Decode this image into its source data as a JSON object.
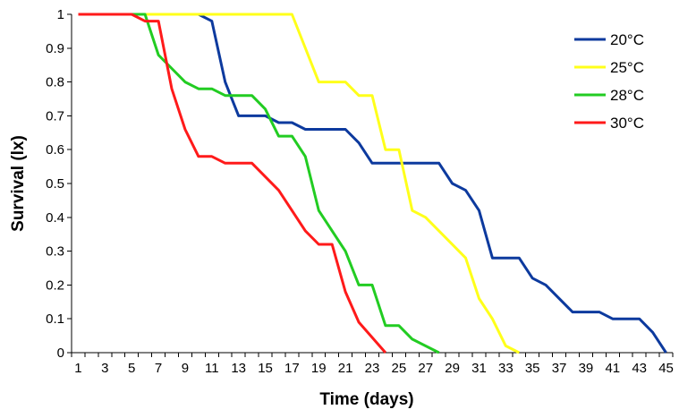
{
  "chart_data": {
    "type": "line",
    "title": "",
    "xlabel": "Time (days)",
    "ylabel": "Survival (lx)",
    "xlim": [
      1,
      45
    ],
    "ylim": [
      0,
      1
    ],
    "grid": false,
    "legend_position": "top-right",
    "x_tick_labels": [
      "1",
      "3",
      "5",
      "7",
      "9",
      "11",
      "13",
      "15",
      "17",
      "19",
      "21",
      "23",
      "25",
      "27",
      "29",
      "31",
      "33",
      "35",
      "37",
      "39",
      "41",
      "43",
      "45"
    ],
    "y_tick_labels": [
      "0",
      "0.1",
      "0.2",
      "0.3",
      "0.4",
      "0.5",
      "0.6",
      "0.7",
      "0.8",
      "0.9",
      "1"
    ],
    "series": [
      {
        "name": "20°C",
        "color": "#0d3a9e",
        "points": [
          [
            1,
            1
          ],
          [
            10,
            1
          ],
          [
            11,
            0.98
          ],
          [
            12,
            0.8
          ],
          [
            13,
            0.7
          ],
          [
            15,
            0.7
          ],
          [
            16,
            0.68
          ],
          [
            17,
            0.68
          ],
          [
            18,
            0.66
          ],
          [
            21,
            0.66
          ],
          [
            22,
            0.62
          ],
          [
            23,
            0.56
          ],
          [
            28,
            0.56
          ],
          [
            29,
            0.5
          ],
          [
            30,
            0.48
          ],
          [
            31,
            0.42
          ],
          [
            32,
            0.28
          ],
          [
            34,
            0.28
          ],
          [
            35,
            0.22
          ],
          [
            36,
            0.2
          ],
          [
            38,
            0.12
          ],
          [
            40,
            0.12
          ],
          [
            41,
            0.1
          ],
          [
            43,
            0.1
          ],
          [
            44,
            0.06
          ],
          [
            45,
            0
          ]
        ]
      },
      {
        "name": "25°C",
        "color": "#ffff1a",
        "points": [
          [
            1,
            1
          ],
          [
            17,
            1
          ],
          [
            19,
            0.8
          ],
          [
            21,
            0.8
          ],
          [
            22,
            0.76
          ],
          [
            23,
            0.76
          ],
          [
            24,
            0.6
          ],
          [
            25,
            0.6
          ],
          [
            26,
            0.42
          ],
          [
            27,
            0.4
          ],
          [
            30,
            0.28
          ],
          [
            31,
            0.16
          ],
          [
            32,
            0.1
          ],
          [
            33,
            0.02
          ],
          [
            34,
            0
          ]
        ]
      },
      {
        "name": "28°C",
        "color": "#22cc22",
        "points": [
          [
            1,
            1
          ],
          [
            6,
            1
          ],
          [
            7,
            0.88
          ],
          [
            8,
            0.84
          ],
          [
            9,
            0.8
          ],
          [
            10,
            0.78
          ],
          [
            11,
            0.78
          ],
          [
            12,
            0.76
          ],
          [
            14,
            0.76
          ],
          [
            15,
            0.72
          ],
          [
            16,
            0.64
          ],
          [
            17,
            0.64
          ],
          [
            18,
            0.58
          ],
          [
            19,
            0.42
          ],
          [
            21,
            0.3
          ],
          [
            22,
            0.2
          ],
          [
            23,
            0.2
          ],
          [
            24,
            0.08
          ],
          [
            25,
            0.08
          ],
          [
            26,
            0.04
          ],
          [
            28,
            0
          ]
        ]
      },
      {
        "name": "30°C",
        "color": "#ff1a1a",
        "points": [
          [
            1,
            1
          ],
          [
            5,
            1
          ],
          [
            6,
            0.98
          ],
          [
            7,
            0.98
          ],
          [
            8,
            0.78
          ],
          [
            9,
            0.66
          ],
          [
            10,
            0.58
          ],
          [
            11,
            0.58
          ],
          [
            12,
            0.56
          ],
          [
            14,
            0.56
          ],
          [
            16,
            0.48
          ],
          [
            18,
            0.36
          ],
          [
            19,
            0.32
          ],
          [
            20,
            0.32
          ],
          [
            21,
            0.18
          ],
          [
            22,
            0.09
          ],
          [
            24,
            0
          ]
        ]
      }
    ]
  }
}
